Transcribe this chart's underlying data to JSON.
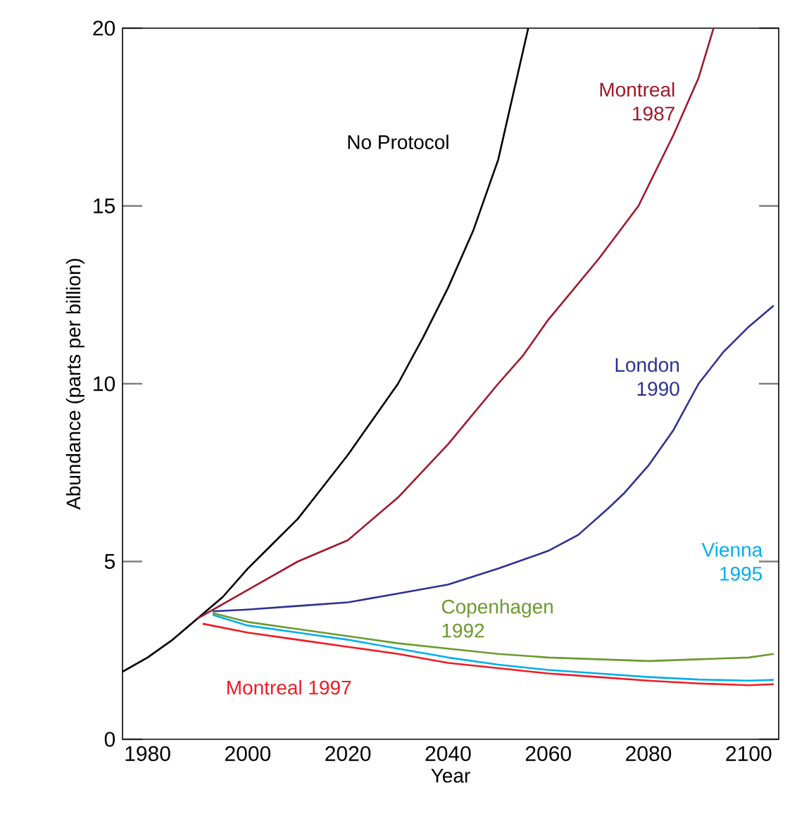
{
  "chart_data": {
    "type": "line",
    "xlabel": "Year",
    "ylabel": "Abundance (parts per billion)",
    "xlim": [
      1975,
      2106
    ],
    "ylim": [
      0,
      20
    ],
    "xticks": [
      1980,
      2000,
      2020,
      2040,
      2060,
      2080,
      2100
    ],
    "yticks": [
      0,
      5,
      10,
      15,
      20
    ],
    "legend": false,
    "grid": false,
    "line_style": "solid",
    "series": [
      {
        "name": "No Protocol",
        "color": "#000000",
        "x": [
          1975,
          1980,
          1985,
          1990,
          1995,
          2000,
          2005,
          2010,
          2015,
          2020,
          2025,
          2030,
          2035,
          2040,
          2045,
          2050,
          2056
        ],
        "values": [
          1.9,
          2.3,
          2.8,
          3.4,
          4.0,
          4.8,
          5.5,
          6.2,
          7.1,
          8.0,
          9.0,
          10.0,
          11.3,
          12.7,
          14.3,
          16.3,
          20
        ]
      },
      {
        "name": "Montreal 1987",
        "color": "#a0182a",
        "x": [
          1990,
          2000,
          2010,
          2020,
          2030,
          2040,
          2050,
          2055,
          2060,
          2070,
          2078,
          2085,
          2090,
          2093
        ],
        "values": [
          3.4,
          4.2,
          5.0,
          5.6,
          6.8,
          8.3,
          10.0,
          10.8,
          11.8,
          13.5,
          15.0,
          17.0,
          18.6,
          20
        ]
      },
      {
        "name": "London 1990",
        "color": "#2e3192",
        "x": [
          1993,
          2000,
          2010,
          2020,
          2030,
          2040,
          2050,
          2060,
          2066,
          2072,
          2075,
          2080,
          2085,
          2090,
          2095,
          2100,
          2105
        ],
        "values": [
          3.6,
          3.65,
          3.75,
          3.85,
          4.1,
          4.35,
          4.8,
          5.3,
          5.75,
          6.5,
          6.9,
          7.7,
          8.7,
          10.0,
          10.9,
          11.6,
          12.2
        ]
      },
      {
        "name": "Copenhagen 1992",
        "color": "#6b9a2e",
        "x": [
          1993,
          2000,
          2010,
          2020,
          2030,
          2040,
          2050,
          2060,
          2070,
          2080,
          2090,
          2100,
          2105
        ],
        "values": [
          3.55,
          3.3,
          3.1,
          2.9,
          2.7,
          2.55,
          2.4,
          2.3,
          2.25,
          2.2,
          2.25,
          2.3,
          2.4
        ]
      },
      {
        "name": "Vienna 1995",
        "color": "#00aeef",
        "x": [
          1993,
          2000,
          2010,
          2020,
          2030,
          2040,
          2050,
          2060,
          2070,
          2080,
          2090,
          2100,
          2105
        ],
        "values": [
          3.5,
          3.2,
          3.0,
          2.8,
          2.55,
          2.3,
          2.1,
          1.95,
          1.85,
          1.75,
          1.68,
          1.65,
          1.67
        ]
      },
      {
        "name": "Montreal 1997",
        "color": "#ed1c24",
        "x": [
          1991,
          2000,
          2010,
          2020,
          2030,
          2040,
          2050,
          2060,
          2070,
          2080,
          2090,
          2100,
          2105
        ],
        "values": [
          3.25,
          3.0,
          2.8,
          2.6,
          2.4,
          2.15,
          2.0,
          1.85,
          1.75,
          1.65,
          1.57,
          1.52,
          1.55
        ]
      }
    ]
  }
}
